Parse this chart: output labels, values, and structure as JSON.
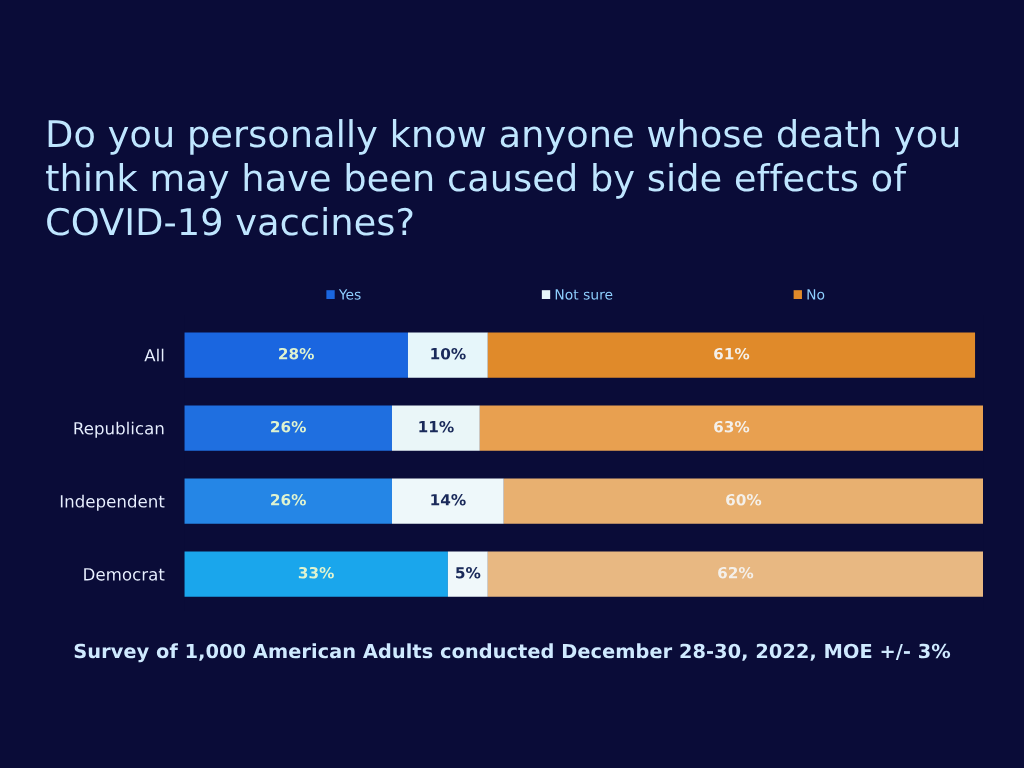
{
  "chart_data": {
    "type": "bar",
    "orientation": "horizontal",
    "stacked": true,
    "title": "Do you personally know anyone whose death you think may have been caused by side effects of COVID-19 vaccines?",
    "categories": [
      "All",
      "Republican",
      "Independent",
      "Democrat"
    ],
    "series": [
      {
        "name": "Yes",
        "color": "#1a66e0",
        "colors": [
          "#1a66e0",
          "#1f6fe0",
          "#2586e6",
          "#1aa6ec"
        ],
        "values": [
          28,
          26,
          26,
          33
        ],
        "value_labels": [
          "28%",
          "26%",
          "26%",
          "33%"
        ]
      },
      {
        "name": "Not sure",
        "color": "#e6f6fa",
        "colors": [
          "#e6f6fa",
          "#eaf6f8",
          "#eef8fa",
          "#f0f8fa"
        ],
        "values": [
          10,
          11,
          14,
          5
        ],
        "value_labels": [
          "10%",
          "11%",
          "14%",
          "5%"
        ]
      },
      {
        "name": "No",
        "color": "#e08a2a",
        "colors": [
          "#e08a2a",
          "#e8a050",
          "#e8b070",
          "#e8b882"
        ],
        "values": [
          61,
          63,
          60,
          62
        ],
        "value_labels": [
          "61%",
          "63%",
          "60%",
          "62%"
        ]
      }
    ],
    "xlim": [
      0,
      100
    ],
    "tick_labels": "y",
    "legend": "top",
    "annotations": [
      "Survey of 1,000 American Adults conducted December 28-30, 2022, MOE +/- 3%"
    ]
  }
}
